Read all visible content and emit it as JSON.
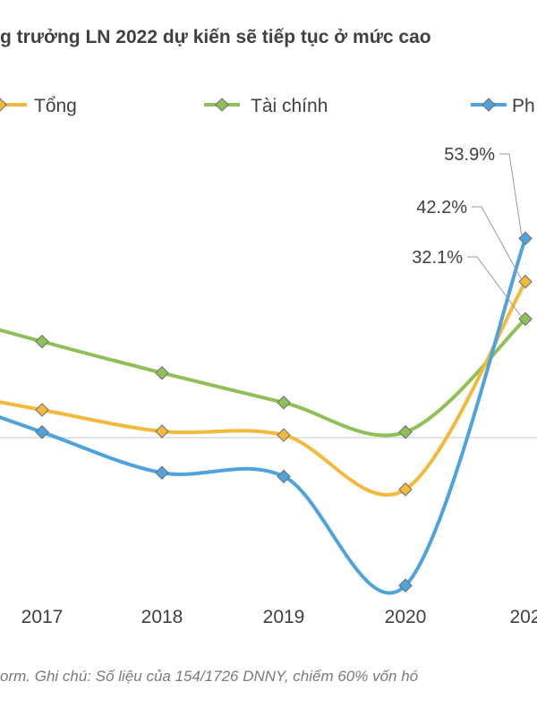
{
  "chart_data": {
    "type": "line",
    "title": "g trưởng LN 2022 dự kiến sẽ tiếp tục ở mức cao",
    "categories": [
      "2017",
      "2018",
      "2019",
      "2020",
      "202"
    ],
    "series": [
      {
        "name": "Tổng",
        "color": "#F2B93B",
        "values": [
          7.5,
          1.7,
          0.7,
          -14,
          42.2
        ]
      },
      {
        "name": "Tài chính",
        "color": "#8DC056",
        "values": [
          26,
          17.5,
          9.5,
          1.5,
          32.1
        ]
      },
      {
        "name": "Ph",
        "color": "#4FA3DD",
        "values": [
          1.5,
          -9.5,
          -10.5,
          -40,
          53.9
        ]
      }
    ],
    "data_labels": [
      {
        "series": "Ph",
        "category": "202",
        "text": "53.9%"
      },
      {
        "series": "Tổng",
        "category": "202",
        "text": "42.2%"
      },
      {
        "series": "Tài chính",
        "category": "202",
        "text": "32.1%"
      }
    ],
    "ylim": [
      -55,
      75
    ],
    "xlabel": "",
    "ylabel": "",
    "grid": false,
    "zero_line": true,
    "legend_position": "top"
  },
  "footnote": "orm. Ghi chú: Số liệu của 154/1726 DNNY, chiếm 60% vốn hó"
}
